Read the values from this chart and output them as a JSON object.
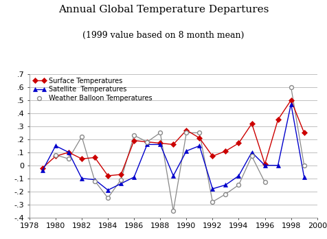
{
  "title": "Annual Global Temperature Departures",
  "subtitle": "(1999 value based on 8 month mean)",
  "years": [
    1979,
    1980,
    1981,
    1982,
    1983,
    1984,
    1985,
    1986,
    1987,
    1988,
    1989,
    1990,
    1991,
    1992,
    1993,
    1994,
    1995,
    1996,
    1997,
    1998,
    1999
  ],
  "surface": [
    -0.02,
    0.07,
    0.1,
    0.05,
    0.06,
    -0.08,
    -0.07,
    0.19,
    0.18,
    0.17,
    0.16,
    0.27,
    0.21,
    0.07,
    0.11,
    0.17,
    0.32,
    0.01,
    0.35,
    0.5,
    0.25
  ],
  "satellite": [
    -0.04,
    0.15,
    0.1,
    -0.1,
    -0.11,
    -0.19,
    -0.14,
    -0.09,
    0.16,
    0.16,
    -0.08,
    0.11,
    0.15,
    -0.18,
    -0.15,
    -0.08,
    0.1,
    0.0,
    0.0,
    0.47,
    -0.09
  ],
  "balloon": [
    null,
    0.08,
    0.05,
    0.22,
    -0.12,
    -0.25,
    -0.11,
    0.23,
    0.18,
    0.25,
    -0.35,
    0.25,
    0.25,
    -0.28,
    -0.22,
    -0.15,
    0.07,
    -0.13,
    null,
    0.6,
    0.0
  ],
  "surface_color": "#cc0000",
  "satellite_color": "#0000cc",
  "balloon_color": "#888888",
  "xlim": [
    1978,
    2000
  ],
  "ylim": [
    -0.4,
    0.7
  ],
  "yticks": [
    -0.4,
    -0.3,
    -0.2,
    -0.1,
    0.0,
    0.1,
    0.2,
    0.3,
    0.4,
    0.5,
    0.6,
    0.7
  ],
  "xticks": [
    1978,
    1980,
    1982,
    1984,
    1986,
    1988,
    1990,
    1992,
    1994,
    1996,
    1998,
    2000
  ],
  "title_fontsize": 11,
  "subtitle_fontsize": 9,
  "tick_fontsize": 8,
  "legend_fontsize": 7
}
